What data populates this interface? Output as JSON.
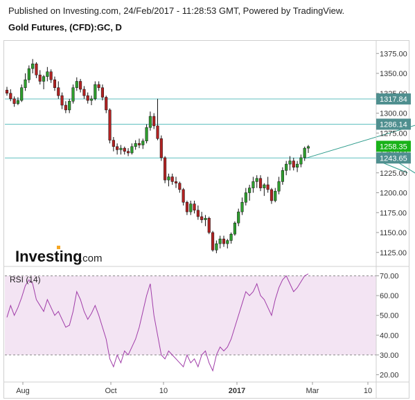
{
  "header": {
    "published": "Published on Investing.com, 24/Feb/2017 - 11:28:53 GMT, Powered by TradingView.",
    "symbol": "Gold Futures, (CFD):GC, D"
  },
  "logo": {
    "main": "Investing",
    "suffix": ".com"
  },
  "colors": {
    "up": "#2e9e2e",
    "down": "#b22222",
    "hline": "#5fbfbf",
    "rsi": "#a03ca8",
    "rsi_band": "#f3e4f3",
    "last_price": "#19b219",
    "label_bg": "#4f8f8f"
  },
  "chart_data": [
    {
      "type": "candlestick",
      "title": "Gold Futures, (CFD):GC, D",
      "ylim": [
        1110,
        1390
      ],
      "y_ticks": [
        1125.0,
        1150.0,
        1175.0,
        1200.0,
        1225.0,
        1250.0,
        1275.0,
        1300.0,
        1325.0,
        1350.0,
        1375.0
      ],
      "horizontal_lines": [
        {
          "value": 1317.84,
          "label": "1317.84"
        },
        {
          "value": 1286.14,
          "label": "1286.14"
        },
        {
          "value": 1243.65,
          "label": "1243.65"
        }
      ],
      "last_price": {
        "value": 1258.35,
        "label": "1258.35"
      },
      "trendlines": [
        {
          "from": [
            81,
            1243
          ],
          "to": [
            112,
            1286
          ]
        },
        {
          "from": [
            104,
            1245
          ],
          "to": [
            112,
            1222
          ]
        },
        {
          "from": [
            101,
            1240
          ],
          "to": [
            109,
            1225
          ]
        }
      ],
      "series": [
        {
          "values": [
            [
              1329,
              1333,
              1322,
              1325
            ],
            [
              1325,
              1330,
              1315,
              1318
            ],
            [
              1318,
              1321,
              1308,
              1312
            ],
            [
              1312,
              1320,
              1310,
              1316
            ],
            [
              1316,
              1336,
              1314,
              1332
            ],
            [
              1332,
              1350,
              1328,
              1342
            ],
            [
              1342,
              1360,
              1338,
              1356
            ],
            [
              1356,
              1368,
              1350,
              1362
            ],
            [
              1362,
              1364,
              1344,
              1348
            ],
            [
              1348,
              1354,
              1336,
              1340
            ],
            [
              1340,
              1348,
              1330,
              1346
            ],
            [
              1346,
              1358,
              1340,
              1352
            ],
            [
              1352,
              1355,
              1338,
              1342
            ],
            [
              1342,
              1346,
              1328,
              1332
            ],
            [
              1332,
              1340,
              1318,
              1322
            ],
            [
              1322,
              1326,
              1305,
              1310
            ],
            [
              1310,
              1315,
              1300,
              1304
            ],
            [
              1304,
              1318,
              1300,
              1315
            ],
            [
              1315,
              1336,
              1312,
              1332
            ],
            [
              1332,
              1345,
              1328,
              1340
            ],
            [
              1340,
              1343,
              1326,
              1330
            ],
            [
              1330,
              1334,
              1318,
              1322
            ],
            [
              1322,
              1326,
              1312,
              1316
            ],
            [
              1316,
              1322,
              1310,
              1318
            ],
            [
              1318,
              1340,
              1316,
              1336
            ],
            [
              1336,
              1340,
              1328,
              1332
            ],
            [
              1332,
              1336,
              1316,
              1320
            ],
            [
              1320,
              1322,
              1300,
              1304
            ],
            [
              1304,
              1306,
              1262,
              1266
            ],
            [
              1266,
              1270,
              1252,
              1258
            ],
            [
              1258,
              1262,
              1248,
              1254
            ],
            [
              1254,
              1260,
              1248,
              1256
            ],
            [
              1256,
              1258,
              1248,
              1252
            ],
            [
              1252,
              1256,
              1246,
              1250
            ],
            [
              1250,
              1262,
              1248,
              1258
            ],
            [
              1258,
              1266,
              1254,
              1262
            ],
            [
              1262,
              1268,
              1256,
              1260
            ],
            [
              1260,
              1268,
              1255,
              1265
            ],
            [
              1265,
              1286,
              1262,
              1282
            ],
            [
              1282,
              1302,
              1278,
              1296
            ],
            [
              1296,
              1300,
              1280,
              1284
            ],
            [
              1284,
              1318,
              1266,
              1268
            ],
            [
              1268,
              1272,
              1240,
              1244
            ],
            [
              1244,
              1246,
              1212,
              1216
            ],
            [
              1216,
              1224,
              1208,
              1220
            ],
            [
              1220,
              1224,
              1210,
              1214
            ],
            [
              1214,
              1220,
              1206,
              1212
            ],
            [
              1212,
              1214,
              1200,
              1204
            ],
            [
              1204,
              1206,
              1184,
              1188
            ],
            [
              1188,
              1190,
              1172,
              1176
            ],
            [
              1176,
              1190,
              1172,
              1186
            ],
            [
              1186,
              1190,
              1174,
              1178
            ],
            [
              1178,
              1184,
              1166,
              1170
            ],
            [
              1170,
              1176,
              1162,
              1166
            ],
            [
              1166,
              1172,
              1158,
              1168
            ],
            [
              1168,
              1170,
              1148,
              1150
            ],
            [
              1150,
              1152,
              1126,
              1128
            ],
            [
              1128,
              1140,
              1124,
              1136
            ],
            [
              1136,
              1146,
              1130,
              1142
            ],
            [
              1142,
              1146,
              1132,
              1136
            ],
            [
              1136,
              1142,
              1130,
              1140
            ],
            [
              1140,
              1150,
              1136,
              1148
            ],
            [
              1148,
              1164,
              1146,
              1162
            ],
            [
              1162,
              1180,
              1158,
              1176
            ],
            [
              1176,
              1194,
              1172,
              1188
            ],
            [
              1188,
              1206,
              1184,
              1200
            ],
            [
              1200,
              1210,
              1190,
              1206
            ],
            [
              1206,
              1220,
              1200,
              1214
            ],
            [
              1214,
              1222,
              1206,
              1218
            ],
            [
              1218,
              1222,
              1202,
              1206
            ],
            [
              1206,
              1212,
              1196,
              1210
            ],
            [
              1210,
              1220,
              1200,
              1204
            ],
            [
              1204,
              1206,
              1186,
              1190
            ],
            [
              1190,
              1206,
              1188,
              1202
            ],
            [
              1202,
              1220,
              1198,
              1214
            ],
            [
              1214,
              1232,
              1210,
              1228
            ],
            [
              1228,
              1240,
              1222,
              1236
            ],
            [
              1236,
              1246,
              1228,
              1240
            ],
            [
              1240,
              1244,
              1228,
              1232
            ],
            [
              1232,
              1240,
              1226,
              1236
            ],
            [
              1236,
              1248,
              1232,
              1244
            ],
            [
              1244,
              1258,
              1240,
              1256
            ],
            [
              1256,
              1260,
              1250,
              1258
            ]
          ]
        }
      ],
      "x_axis": {
        "labels": [
          "Aug",
          "Oct",
          "10",
          "2017",
          "Mar",
          "10"
        ],
        "bold_label": "2017"
      }
    },
    {
      "type": "line",
      "title": "RSI (14)",
      "ylim": [
        17,
        73
      ],
      "y_ticks": [
        20.0,
        30.0,
        40.0,
        50.0,
        60.0,
        70.0
      ],
      "band": [
        30,
        70
      ],
      "series": [
        {
          "name": "RSI (14)",
          "values": [
            49,
            55,
            50,
            54,
            59,
            65,
            68,
            66,
            58,
            55,
            52,
            58,
            54,
            50,
            52,
            48,
            44,
            45,
            52,
            62,
            58,
            52,
            48,
            51,
            55,
            50,
            44,
            38,
            28,
            24,
            30,
            26,
            32,
            30,
            34,
            38,
            44,
            52,
            60,
            66,
            50,
            40,
            30,
            28,
            32,
            30,
            28,
            26,
            24,
            30,
            26,
            28,
            24,
            30,
            32,
            26,
            22,
            30,
            34,
            32,
            34,
            38,
            44,
            50,
            56,
            62,
            60,
            62,
            66,
            60,
            58,
            54,
            50,
            58,
            64,
            68,
            70,
            66,
            62,
            64,
            67,
            70,
            71
          ]
        }
      ]
    }
  ]
}
